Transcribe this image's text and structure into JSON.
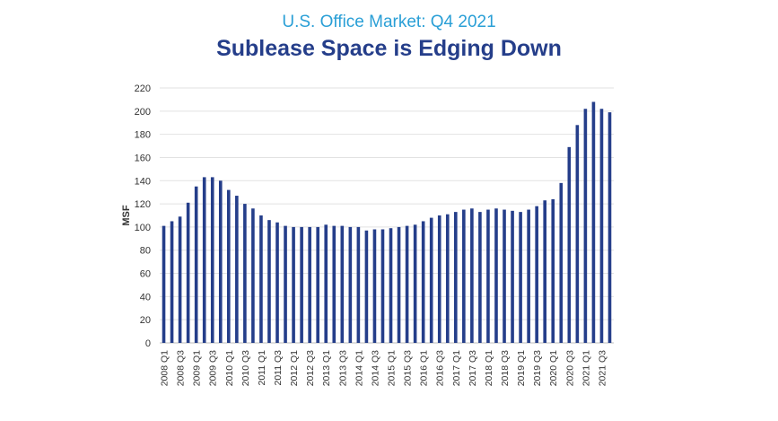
{
  "header": {
    "subtitle": "U.S. Office Market: Q4 2021",
    "title": "Sublease Space is Edging Down"
  },
  "chart_data": {
    "type": "bar",
    "title": "Sublease Space is Edging Down",
    "subtitle": "U.S. Office Market: Q4 2021",
    "xlabel": "",
    "ylabel": "MSF",
    "ylim": [
      0,
      220
    ],
    "yticks": [
      0,
      20,
      40,
      60,
      80,
      100,
      120,
      140,
      160,
      180,
      200,
      220
    ],
    "grid": true,
    "bar_color": "#253e8a",
    "categories": [
      "2008 Q1",
      "2008 Q2",
      "2008 Q3",
      "2008 Q4",
      "2009 Q1",
      "2009 Q2",
      "2009 Q3",
      "2009 Q4",
      "2010 Q1",
      "2010 Q2",
      "2010 Q3",
      "2010 Q4",
      "2011 Q1",
      "2011 Q2",
      "2011 Q3",
      "2011 Q4",
      "2012 Q1",
      "2012 Q2",
      "2012 Q3",
      "2012 Q4",
      "2013 Q1",
      "2013 Q2",
      "2013 Q3",
      "2013 Q4",
      "2014 Q1",
      "2014 Q2",
      "2014 Q3",
      "2014 Q4",
      "2015 Q1",
      "2015 Q2",
      "2015 Q3",
      "2015 Q4",
      "2016 Q1",
      "2016 Q2",
      "2016 Q3",
      "2016 Q4",
      "2017 Q1",
      "2017 Q2",
      "2017 Q3",
      "2017 Q4",
      "2018 Q1",
      "2018 Q2",
      "2018 Q3",
      "2018 Q4",
      "2019 Q1",
      "2019 Q2",
      "2019 Q3",
      "2019 Q4",
      "2020 Q1",
      "2020 Q2",
      "2020 Q3",
      "2020 Q4",
      "2021 Q1",
      "2021 Q2",
      "2021 Q3",
      "2021 Q4"
    ],
    "xtick_labels": [
      "2008 Q1",
      "2008 Q3",
      "2009 Q1",
      "2009 Q3",
      "2010 Q1",
      "2010 Q3",
      "2011 Q1",
      "2011 Q3",
      "2012 Q1",
      "2012 Q3",
      "2013 Q1",
      "2013 Q3",
      "2014 Q1",
      "2014 Q3",
      "2015 Q1",
      "2015 Q3",
      "2016 Q1",
      "2016 Q3",
      "2017 Q1",
      "2017 Q3",
      "2018 Q1",
      "2018 Q3",
      "2019 Q1",
      "2019 Q3",
      "2020 Q1",
      "2020 Q3",
      "2021 Q1",
      "2021 Q3"
    ],
    "values": [
      101,
      105,
      109,
      121,
      135,
      143,
      143,
      140,
      132,
      127,
      120,
      116,
      110,
      106,
      104,
      101,
      100,
      100,
      100,
      100,
      102,
      101,
      101,
      100,
      100,
      97,
      98,
      98,
      99,
      100,
      101,
      102,
      105,
      108,
      110,
      111,
      113,
      115,
      116,
      113,
      115,
      116,
      115,
      114,
      113,
      115,
      118,
      123,
      124,
      138,
      169,
      188,
      202,
      208,
      202,
      199
    ]
  }
}
